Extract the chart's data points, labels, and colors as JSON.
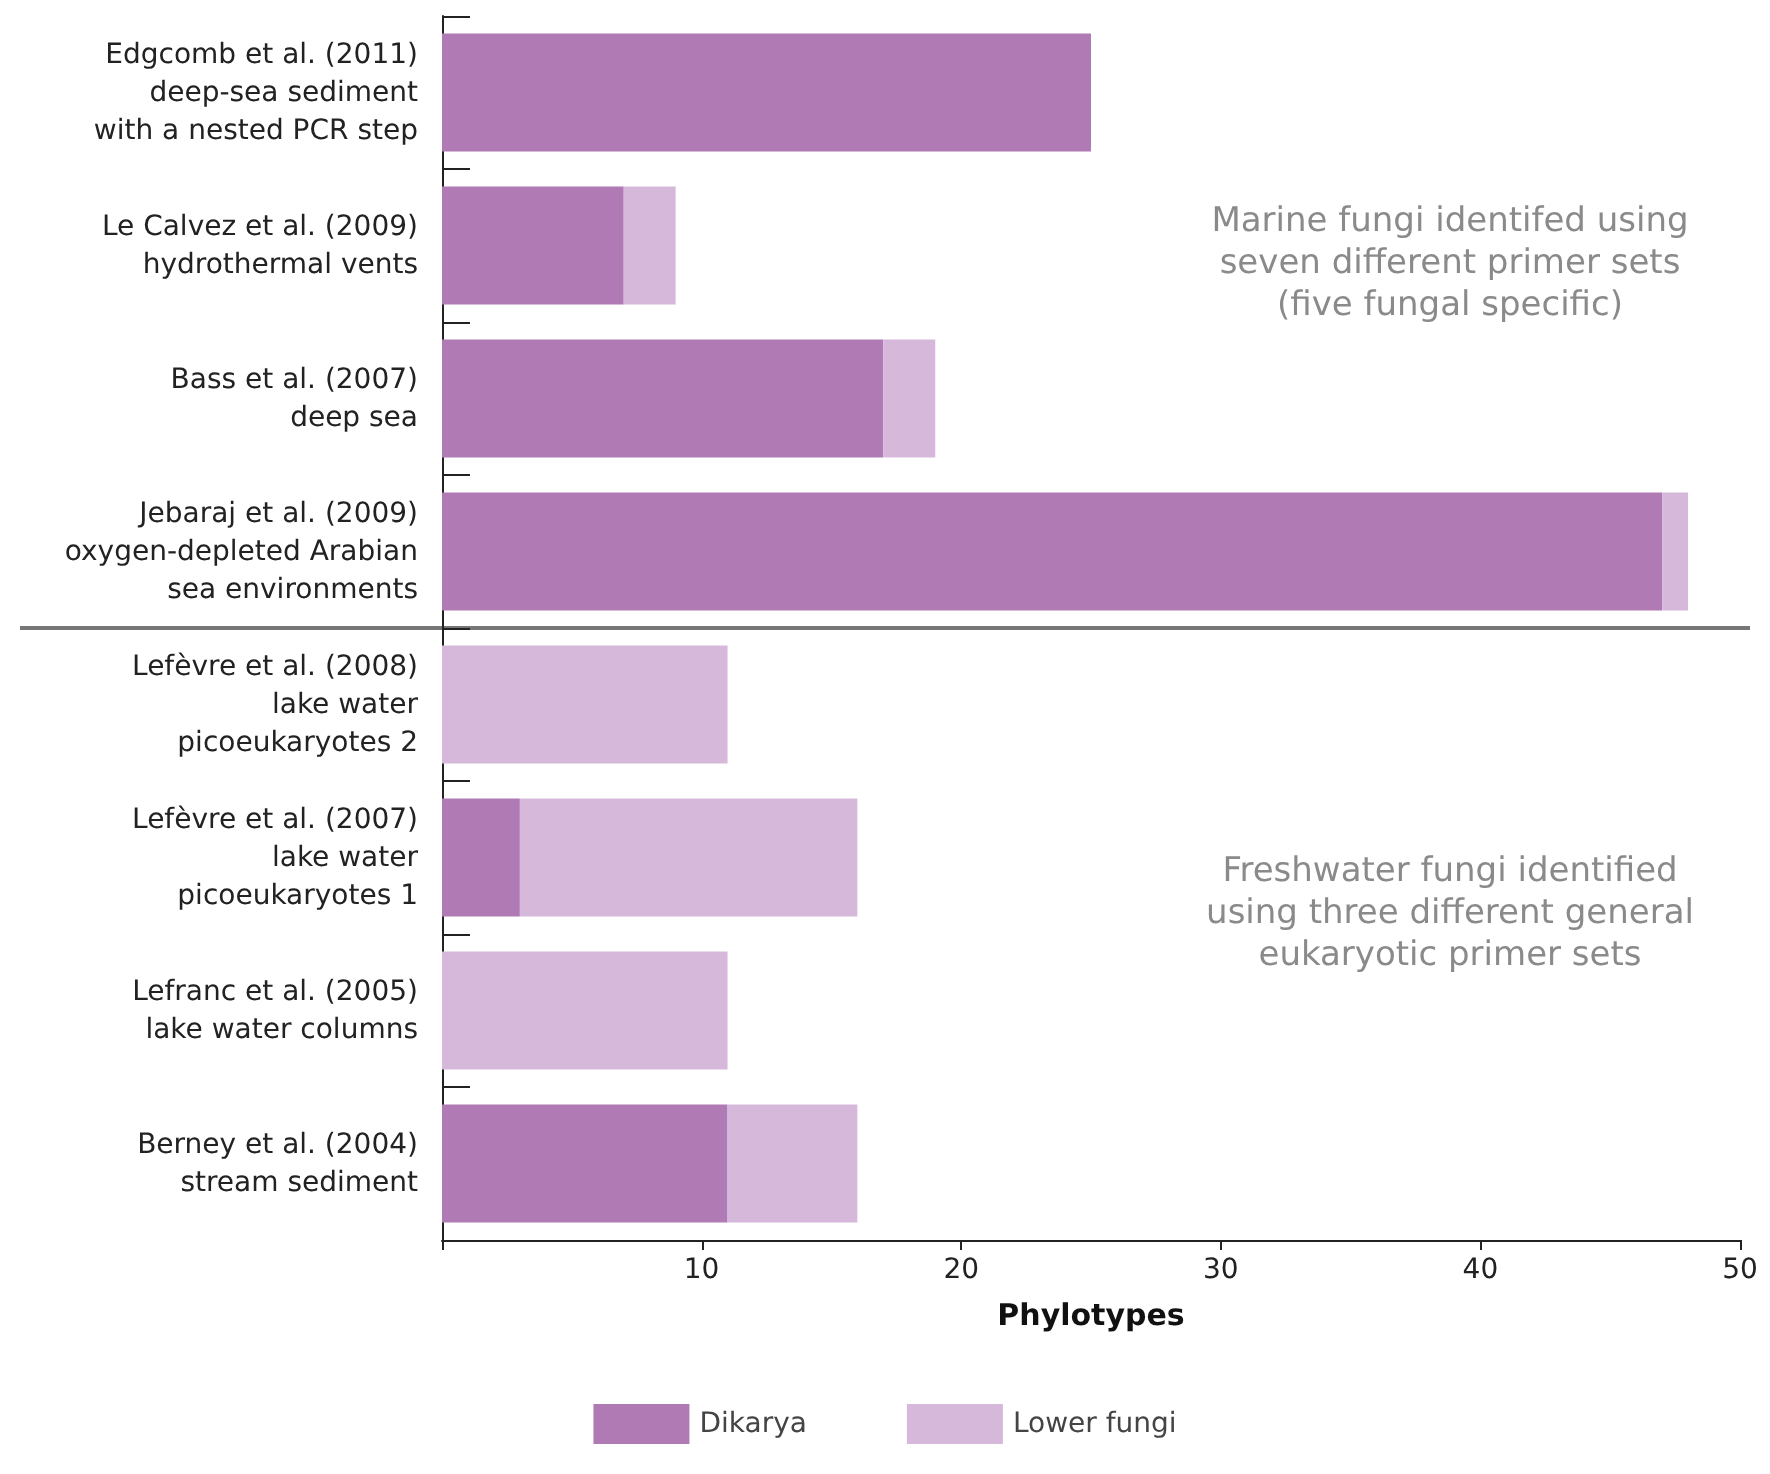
{
  "chart_data": {
    "type": "bar",
    "orientation": "horizontal",
    "stacked": true,
    "categories": [
      "Edgcomb et al. (2011)\ndeep-sea sediment\nwith a nested PCR step",
      "Le Calvez et al. (2009)\nhydrothermal vents",
      "Bass et al. (2007)\ndeep sea",
      "Jebaraj et al. (2009)\noxygen-depleted Arabian\nsea environments",
      "Lefèvre et al. (2008)\nlake water\npicoeukaryotes 2",
      "Lefèvre et al. (2007)\nlake water\npicoeukaryotes 1",
      "Lefranc et al. (2005)\nlake water columns",
      "Berney et al. (2004)\nstream sediment"
    ],
    "series": [
      {
        "name": "Dikarya",
        "color": "#b07ab5",
        "values": [
          25,
          7,
          17,
          47,
          0,
          3,
          0,
          11
        ]
      },
      {
        "name": "Lower fungi",
        "color": "#d6b9da",
        "values": [
          0,
          2,
          2,
          1,
          11,
          13,
          11,
          5
        ]
      }
    ],
    "xlabel": "Phylotypes",
    "xlim": [
      0,
      50
    ],
    "xticks": [
      {
        "value": 0,
        "label": null
      },
      10,
      20,
      30,
      40,
      50
    ],
    "annotations": [
      "Marine fungi identifed using\nseven different primer sets\n(five fungal specific)",
      "Freshwater fungi identified\nusing three different general\neukaryotic primer sets"
    ],
    "grid": false,
    "legend": "bottom"
  }
}
